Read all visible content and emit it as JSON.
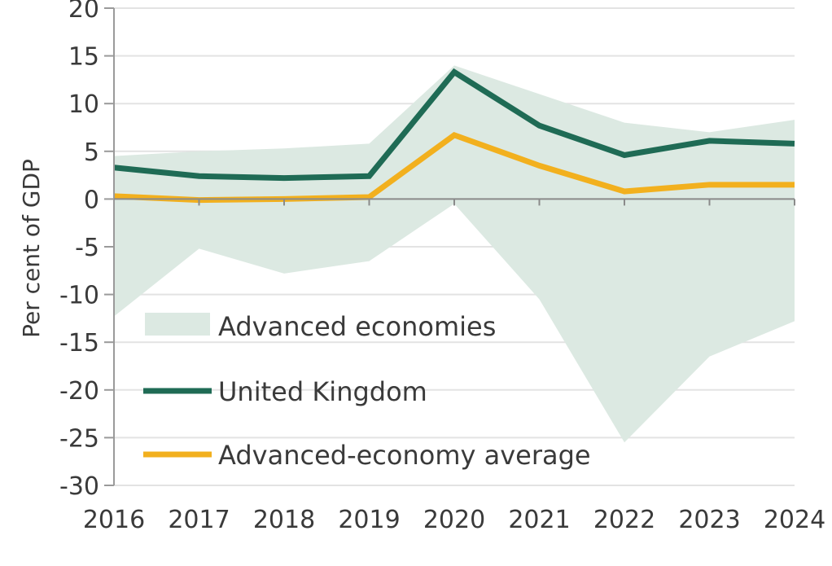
{
  "chart_data": {
    "type": "line",
    "title": "",
    "xlabel": "",
    "ylabel": "Per cent of GDP",
    "x": [
      2016,
      2017,
      2018,
      2019,
      2020,
      2021,
      2022,
      2023,
      2024
    ],
    "xticks": [
      "2016",
      "2017",
      "2018",
      "2019",
      "2020",
      "2021",
      "2022",
      "2023",
      "2024"
    ],
    "ylim": [
      -30,
      20
    ],
    "yticks": [
      20,
      15,
      10,
      5,
      0,
      -5,
      -10,
      -15,
      -20,
      -25,
      -30
    ],
    "grid": true,
    "legend": "inside-bottom-left",
    "range": {
      "name": "Advanced economies",
      "color": "#dce9e2",
      "upper": [
        4.5,
        5.0,
        5.3,
        5.8,
        14.0,
        11.0,
        8.0,
        7.0,
        8.3
      ],
      "lower": [
        -12.3,
        -5.2,
        -7.8,
        -6.5,
        -0.5,
        -10.5,
        -25.5,
        -16.5,
        -12.8
      ]
    },
    "series": [
      {
        "name": "United Kingdom",
        "color": "#1f6b55",
        "values": [
          3.3,
          2.4,
          2.2,
          2.4,
          13.3,
          7.7,
          4.6,
          6.1,
          5.8
        ]
      },
      {
        "name": "Advanced-economy average",
        "color": "#f2b01e",
        "values": [
          0.3,
          -0.1,
          0.0,
          0.2,
          6.7,
          3.5,
          0.8,
          1.5,
          1.5
        ]
      }
    ]
  }
}
